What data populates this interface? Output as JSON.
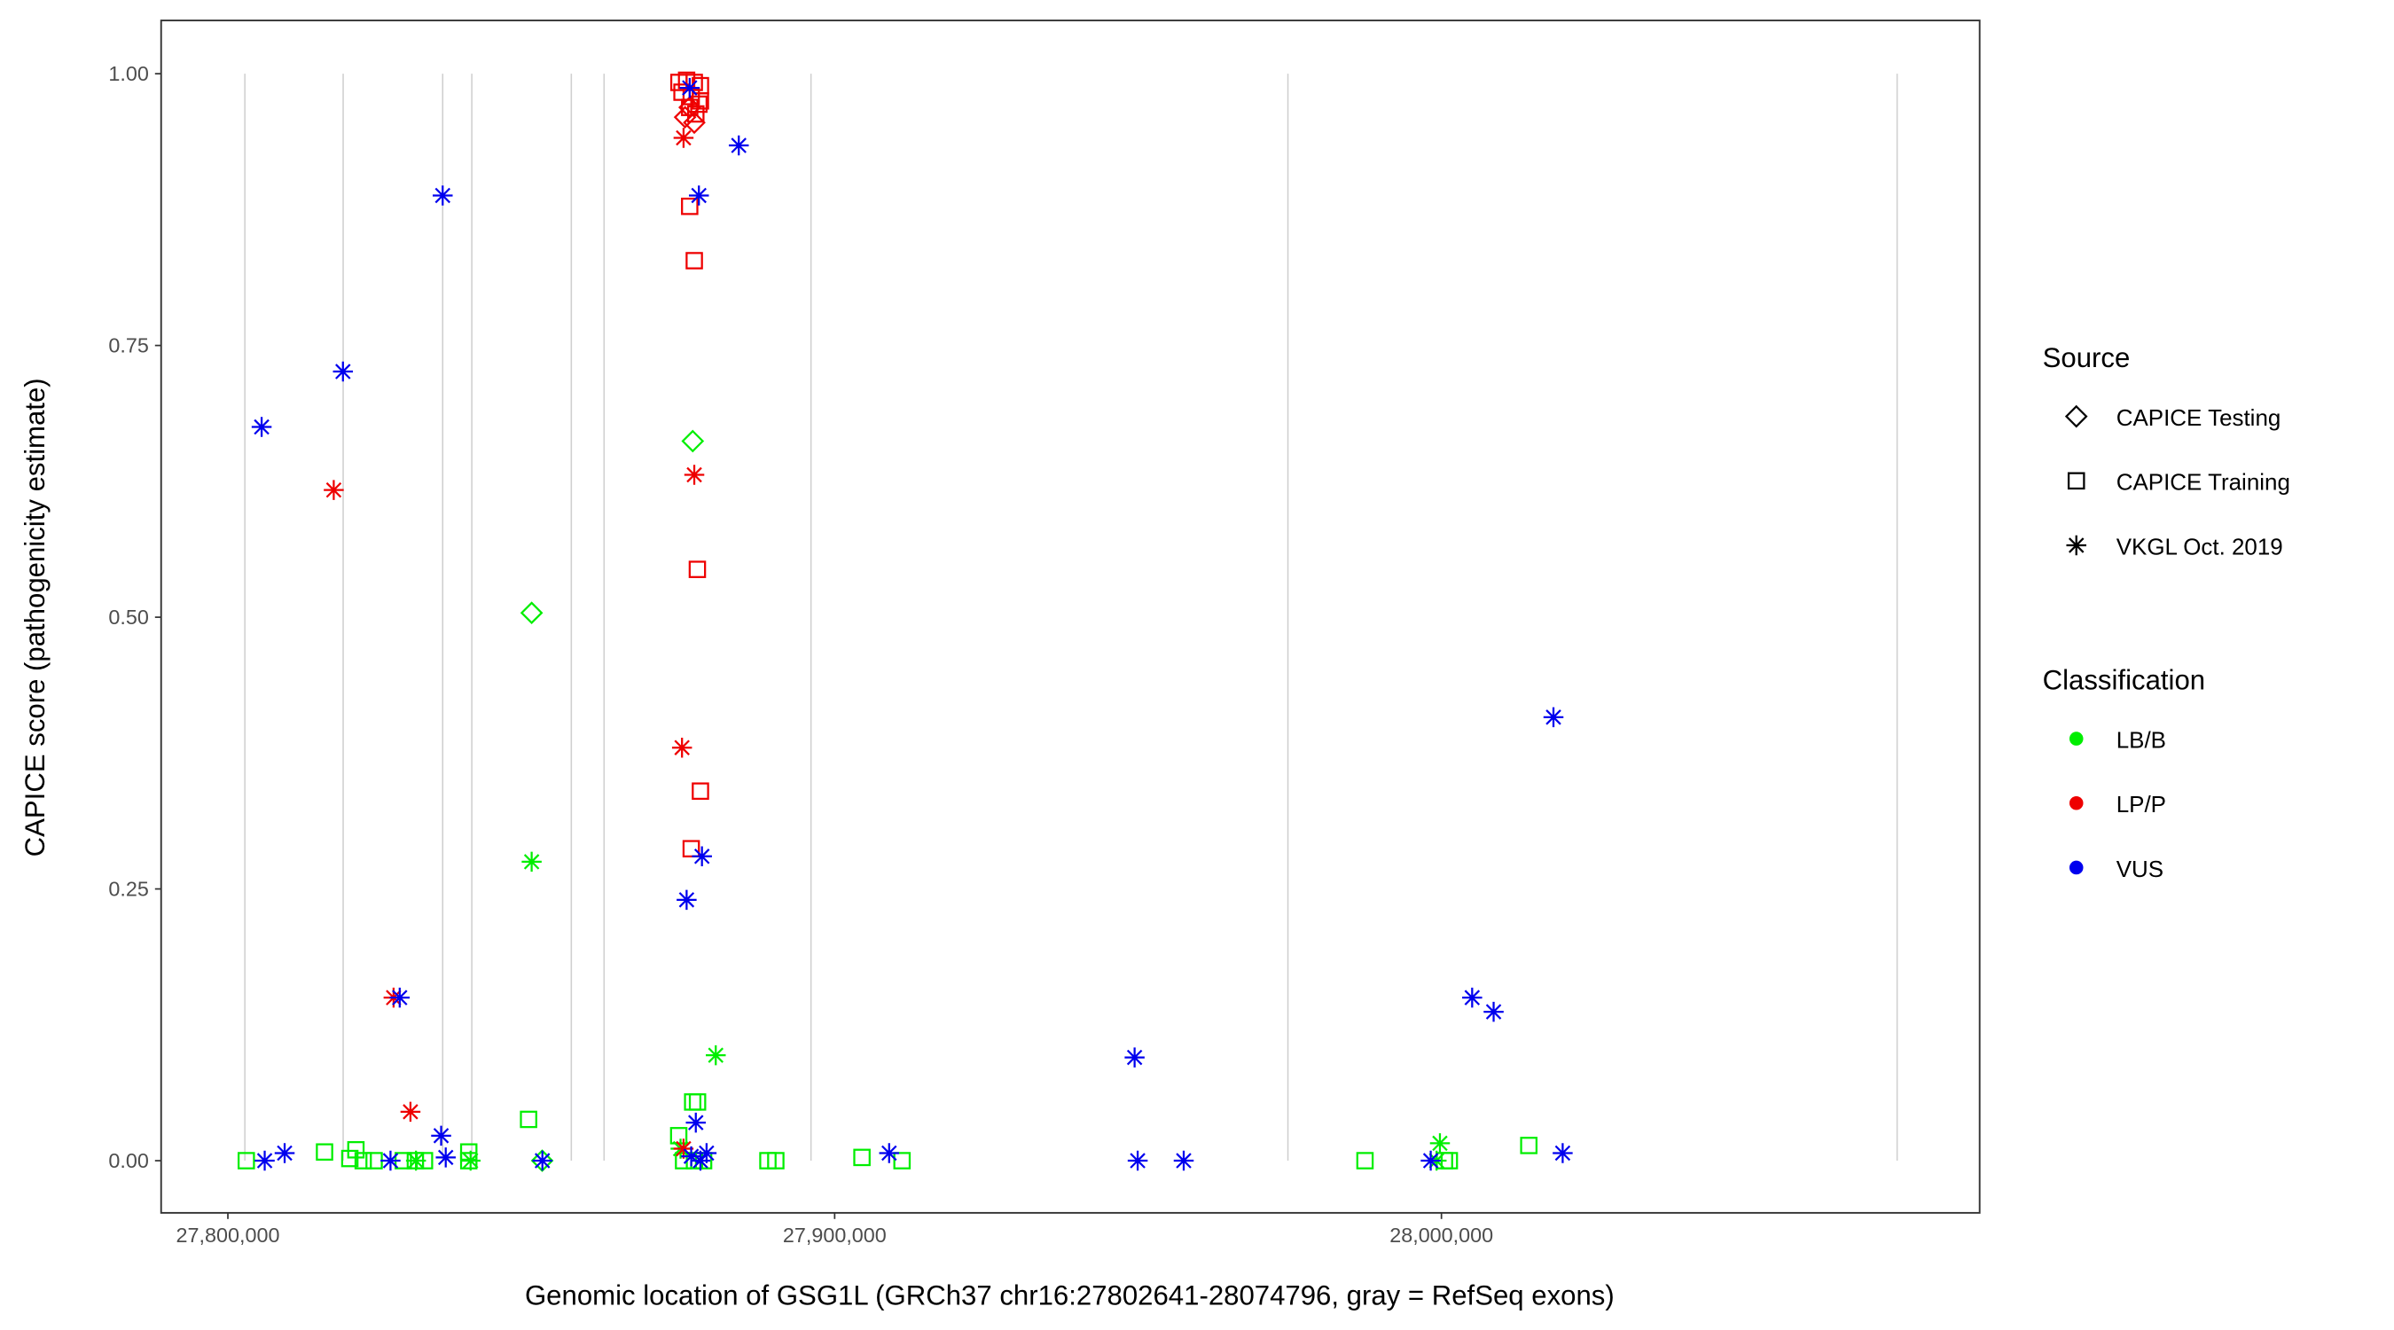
{
  "chart_data": {
    "type": "scatter",
    "xlabel": "Genomic location of GSG1L (GRCh37 chr16:27802641-28074796, gray = RefSeq exons)",
    "ylabel": "CAPICE score (pathogenicity estimate)",
    "xlim": [
      27789000,
      28088700
    ],
    "ylim": [
      -0.048,
      1.049
    ],
    "x_ticks": [
      27800000,
      27900000,
      28000000
    ],
    "x_tick_labels": [
      "27,800,000",
      "27,900,000",
      "28,000,000"
    ],
    "y_ticks": [
      0,
      0.25,
      0.5,
      0.75,
      1.0
    ],
    "y_tick_labels": [
      "0.00",
      "0.25",
      "0.50",
      "0.75",
      "1.00"
    ],
    "grid": false,
    "exons": [
      27802800,
      27819000,
      27835400,
      27840200,
      27856600,
      27862000,
      27896100,
      27974700,
      28075100
    ],
    "legend_position": "right",
    "legend": {
      "source_title": "Source",
      "sources": [
        {
          "key": "testing",
          "label": "CAPICE Testing",
          "shape": "diamond"
        },
        {
          "key": "training",
          "label": "CAPICE Training",
          "shape": "square"
        },
        {
          "key": "vkgl",
          "label": "VKGL Oct. 2019",
          "shape": "asterisk"
        }
      ],
      "class_title": "Classification",
      "classes": [
        {
          "key": "LB/B",
          "label": "LB/B",
          "color": "#00ee00"
        },
        {
          "key": "LP/P",
          "label": "LP/P",
          "color": "#ee0000"
        },
        {
          "key": "VUS",
          "label": "VUS",
          "color": "#0000ee"
        }
      ]
    },
    "points": [
      {
        "x": 27803034,
        "y": 0.0,
        "s": "training",
        "c": "LB/B"
      },
      {
        "x": 27815930,
        "y": 0.008,
        "s": "training",
        "c": "LB/B"
      },
      {
        "x": 27820100,
        "y": 0.002,
        "s": "training",
        "c": "LB/B"
      },
      {
        "x": 27821100,
        "y": 0.01,
        "s": "training",
        "c": "LB/B"
      },
      {
        "x": 27822300,
        "y": 0.0,
        "s": "training",
        "c": "LB/B"
      },
      {
        "x": 27824100,
        "y": 0.0,
        "s": "training",
        "c": "LB/B"
      },
      {
        "x": 27828900,
        "y": 0.0,
        "s": "training",
        "c": "LB/B"
      },
      {
        "x": 27830900,
        "y": 0.0,
        "s": "training",
        "c": "LB/B"
      },
      {
        "x": 27832400,
        "y": 0.0,
        "s": "training",
        "c": "LB/B"
      },
      {
        "x": 27839700,
        "y": 0.008,
        "s": "training",
        "c": "LB/B"
      },
      {
        "x": 27839700,
        "y": 0.0,
        "s": "training",
        "c": "LB/B"
      },
      {
        "x": 27849558,
        "y": 0.038,
        "s": "training",
        "c": "LB/B"
      },
      {
        "x": 27876600,
        "y": 0.054,
        "s": "training",
        "c": "LB/B"
      },
      {
        "x": 27877400,
        "y": 0.054,
        "s": "training",
        "c": "LB/B"
      },
      {
        "x": 27874300,
        "y": 0.023,
        "s": "training",
        "c": "LB/B"
      },
      {
        "x": 27875100,
        "y": 0.0,
        "s": "training",
        "c": "LB/B"
      },
      {
        "x": 27876900,
        "y": 0.0,
        "s": "training",
        "c": "LB/B"
      },
      {
        "x": 27878400,
        "y": 0.0,
        "s": "training",
        "c": "LB/B"
      },
      {
        "x": 27889000,
        "y": 0.0,
        "s": "training",
        "c": "LB/B"
      },
      {
        "x": 27890300,
        "y": 0.0,
        "s": "training",
        "c": "LB/B"
      },
      {
        "x": 27904500,
        "y": 0.003,
        "s": "training",
        "c": "LB/B"
      },
      {
        "x": 27911100,
        "y": 0.0,
        "s": "training",
        "c": "LB/B"
      },
      {
        "x": 27987400,
        "y": 0.0,
        "s": "training",
        "c": "LB/B"
      },
      {
        "x": 28000500,
        "y": 0.0,
        "s": "training",
        "c": "LB/B"
      },
      {
        "x": 28001300,
        "y": 0.0,
        "s": "training",
        "c": "LB/B"
      },
      {
        "x": 28014400,
        "y": 0.014,
        "s": "training",
        "c": "LB/B"
      },
      {
        "x": 27850064,
        "y": 0.504,
        "s": "testing",
        "c": "LB/B"
      },
      {
        "x": 27876613,
        "y": 0.662,
        "s": "testing",
        "c": "LB/B"
      },
      {
        "x": 27851800,
        "y": 0.0,
        "s": "testing",
        "c": "LB/B"
      },
      {
        "x": 27850064,
        "y": 0.275,
        "s": "vkgl",
        "c": "LB/B"
      },
      {
        "x": 27880405,
        "y": 0.097,
        "s": "vkgl",
        "c": "LB/B"
      },
      {
        "x": 27999751,
        "y": 0.016,
        "s": "vkgl",
        "c": "LB/B"
      },
      {
        "x": 27999200,
        "y": 0.0,
        "s": "vkgl",
        "c": "LB/B"
      },
      {
        "x": 27874600,
        "y": 0.011,
        "s": "vkgl",
        "c": "LB/B"
      },
      {
        "x": 27840000,
        "y": 0.0,
        "s": "vkgl",
        "c": "LB/B"
      },
      {
        "x": 27831000,
        "y": 0.0,
        "s": "vkgl",
        "c": "LB/B"
      },
      {
        "x": 27874338,
        "y": 0.992,
        "s": "training",
        "c": "LP/P"
      },
      {
        "x": 27875602,
        "y": 0.994,
        "s": "training",
        "c": "LP/P"
      },
      {
        "x": 27876866,
        "y": 0.992,
        "s": "training",
        "c": "LP/P"
      },
      {
        "x": 27877878,
        "y": 0.989,
        "s": "training",
        "c": "LP/P"
      },
      {
        "x": 27874843,
        "y": 0.983,
        "s": "training",
        "c": "LP/P"
      },
      {
        "x": 27876360,
        "y": 0.979,
        "s": "training",
        "c": "LP/P"
      },
      {
        "x": 27877625,
        "y": 0.972,
        "s": "training",
        "c": "LP/P"
      },
      {
        "x": 27876107,
        "y": 0.969,
        "s": "training",
        "c": "LP/P"
      },
      {
        "x": 27877119,
        "y": 0.963,
        "s": "training",
        "c": "LP/P"
      },
      {
        "x": 27877878,
        "y": 0.975,
        "s": "training",
        "c": "LP/P"
      },
      {
        "x": 27876107,
        "y": 0.878,
        "s": "training",
        "c": "LP/P"
      },
      {
        "x": 27876866,
        "y": 0.828,
        "s": "training",
        "c": "LP/P"
      },
      {
        "x": 27877372,
        "y": 0.544,
        "s": "training",
        "c": "LP/P"
      },
      {
        "x": 27877878,
        "y": 0.34,
        "s": "training",
        "c": "LP/P"
      },
      {
        "x": 27876360,
        "y": 0.287,
        "s": "training",
        "c": "LP/P"
      },
      {
        "x": 27875349,
        "y": 0.96,
        "s": "testing",
        "c": "LP/P"
      },
      {
        "x": 27876107,
        "y": 0.969,
        "s": "testing",
        "c": "LP/P"
      },
      {
        "x": 27876866,
        "y": 0.955,
        "s": "testing",
        "c": "LP/P"
      },
      {
        "x": 27817447,
        "y": 0.617,
        "s": "vkgl",
        "c": "LP/P"
      },
      {
        "x": 27827308,
        "y": 0.15,
        "s": "vkgl",
        "c": "LP/P"
      },
      {
        "x": 27830089,
        "y": 0.045,
        "s": "vkgl",
        "c": "LP/P"
      },
      {
        "x": 27876866,
        "y": 0.631,
        "s": "vkgl",
        "c": "LP/P"
      },
      {
        "x": 27874843,
        "y": 0.38,
        "s": "vkgl",
        "c": "LP/P"
      },
      {
        "x": 27875096,
        "y": 0.941,
        "s": "vkgl",
        "c": "LP/P"
      },
      {
        "x": 27875096,
        "y": 0.011,
        "s": "vkgl",
        "c": "LP/P"
      },
      {
        "x": 27805563,
        "y": 0.675,
        "s": "vkgl",
        "c": "VUS"
      },
      {
        "x": 27818964,
        "y": 0.726,
        "s": "vkgl",
        "c": "VUS"
      },
      {
        "x": 27835399,
        "y": 0.888,
        "s": "vkgl",
        "c": "VUS"
      },
      {
        "x": 27876108,
        "y": 0.987,
        "s": "vkgl",
        "c": "VUS"
      },
      {
        "x": 27884199,
        "y": 0.934,
        "s": "vkgl",
        "c": "VUS"
      },
      {
        "x": 27877625,
        "y": 0.888,
        "s": "vkgl",
        "c": "VUS"
      },
      {
        "x": 27878131,
        "y": 0.28,
        "s": "vkgl",
        "c": "VUS"
      },
      {
        "x": 27875602,
        "y": 0.24,
        "s": "vkgl",
        "c": "VUS"
      },
      {
        "x": 27828319,
        "y": 0.15,
        "s": "vkgl",
        "c": "VUS"
      },
      {
        "x": 27835146,
        "y": 0.023,
        "s": "vkgl",
        "c": "VUS"
      },
      {
        "x": 27877119,
        "y": 0.035,
        "s": "vkgl",
        "c": "VUS"
      },
      {
        "x": 27806068,
        "y": 0.0,
        "s": "vkgl",
        "c": "VUS"
      },
      {
        "x": 27809355,
        "y": 0.007,
        "s": "vkgl",
        "c": "VUS"
      },
      {
        "x": 27826802,
        "y": 0.0,
        "s": "vkgl",
        "c": "VUS"
      },
      {
        "x": 27835905,
        "y": 0.003,
        "s": "vkgl",
        "c": "VUS"
      },
      {
        "x": 27851834,
        "y": 0.0,
        "s": "vkgl",
        "c": "VUS"
      },
      {
        "x": 27877878,
        "y": 0.0,
        "s": "vkgl",
        "c": "VUS"
      },
      {
        "x": 27878889,
        "y": 0.007,
        "s": "vkgl",
        "c": "VUS"
      },
      {
        "x": 27876360,
        "y": 0.004,
        "s": "vkgl",
        "c": "VUS"
      },
      {
        "x": 27908978,
        "y": 0.007,
        "s": "vkgl",
        "c": "VUS"
      },
      {
        "x": 27949434,
        "y": 0.095,
        "s": "vkgl",
        "c": "VUS"
      },
      {
        "x": 27949940,
        "y": 0.0,
        "s": "vkgl",
        "c": "VUS"
      },
      {
        "x": 27957525,
        "y": 0.0,
        "s": "vkgl",
        "c": "VUS"
      },
      {
        "x": 27998234,
        "y": 0.0,
        "s": "vkgl",
        "c": "VUS"
      },
      {
        "x": 28005061,
        "y": 0.15,
        "s": "vkgl",
        "c": "VUS"
      },
      {
        "x": 28008601,
        "y": 0.137,
        "s": "vkgl",
        "c": "VUS"
      },
      {
        "x": 28018462,
        "y": 0.408,
        "s": "vkgl",
        "c": "VUS"
      },
      {
        "x": 28019979,
        "y": 0.007,
        "s": "vkgl",
        "c": "VUS"
      }
    ]
  }
}
